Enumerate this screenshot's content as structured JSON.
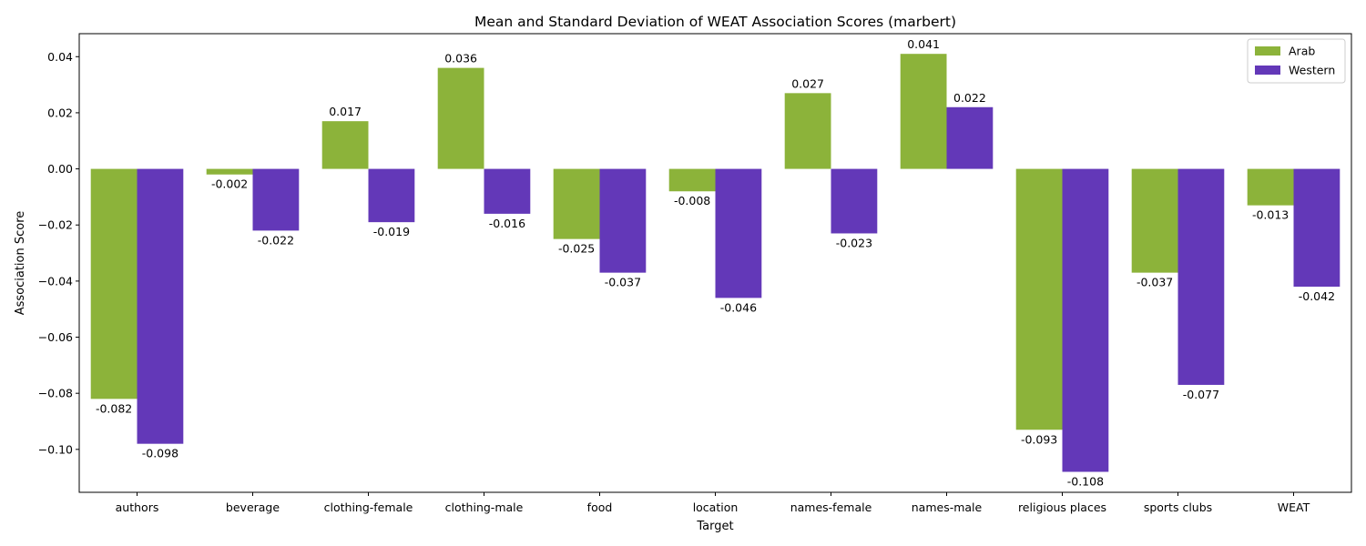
{
  "chart_data": {
    "type": "bar",
    "title": "Mean and Standard Deviation of WEAT Association Scores (marbert)",
    "xlabel": "Target",
    "ylabel": "Association Score",
    "categories": [
      "authors",
      "beverage",
      "clothing-female",
      "clothing-male",
      "food",
      "location",
      "names-female",
      "names-male",
      "religious places",
      "sports clubs",
      "WEAT"
    ],
    "series": [
      {
        "name": "Arab",
        "color": "#8cb33a",
        "values": [
          -0.082,
          -0.002,
          0.017,
          0.036,
          -0.025,
          -0.008,
          0.027,
          0.041,
          -0.093,
          -0.037,
          -0.013
        ],
        "labels": [
          "-0.082",
          "-0.002",
          "0.017",
          "0.036",
          "-0.025",
          "-0.008",
          "0.027",
          "0.041",
          "-0.093",
          "-0.037",
          "-0.013"
        ]
      },
      {
        "name": "Western",
        "color": "#6338b8",
        "values": [
          -0.098,
          -0.022,
          -0.019,
          -0.016,
          -0.037,
          -0.046,
          -0.023,
          0.022,
          -0.108,
          -0.077,
          -0.042
        ],
        "labels": [
          "-0.098",
          "-0.022",
          "-0.019",
          "-0.016",
          "-0.037",
          "-0.046",
          "-0.023",
          "0.022",
          "-0.108",
          "-0.077",
          "-0.042"
        ]
      }
    ],
    "ylim": [
      -0.1153,
      0.0482
    ],
    "yticks": [
      -0.1,
      -0.08,
      -0.06,
      -0.04,
      -0.02,
      0.0,
      0.02,
      0.04
    ],
    "ytick_labels": [
      "−0.10",
      "−0.08",
      "−0.06",
      "−0.04",
      "−0.02",
      "0.00",
      "0.02",
      "0.04"
    ],
    "grid": false,
    "legend": "top-right"
  }
}
